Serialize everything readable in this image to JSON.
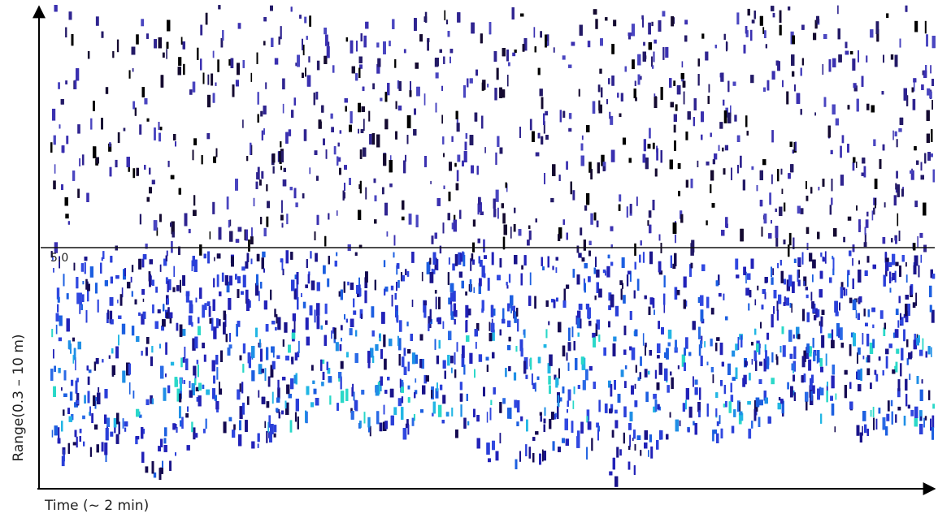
{
  "axes": {
    "x_label": "Time (~ 2 min)",
    "y_label": "Range(0.3 – 10 m)"
  },
  "marker": {
    "label": "5.0"
  }
}
